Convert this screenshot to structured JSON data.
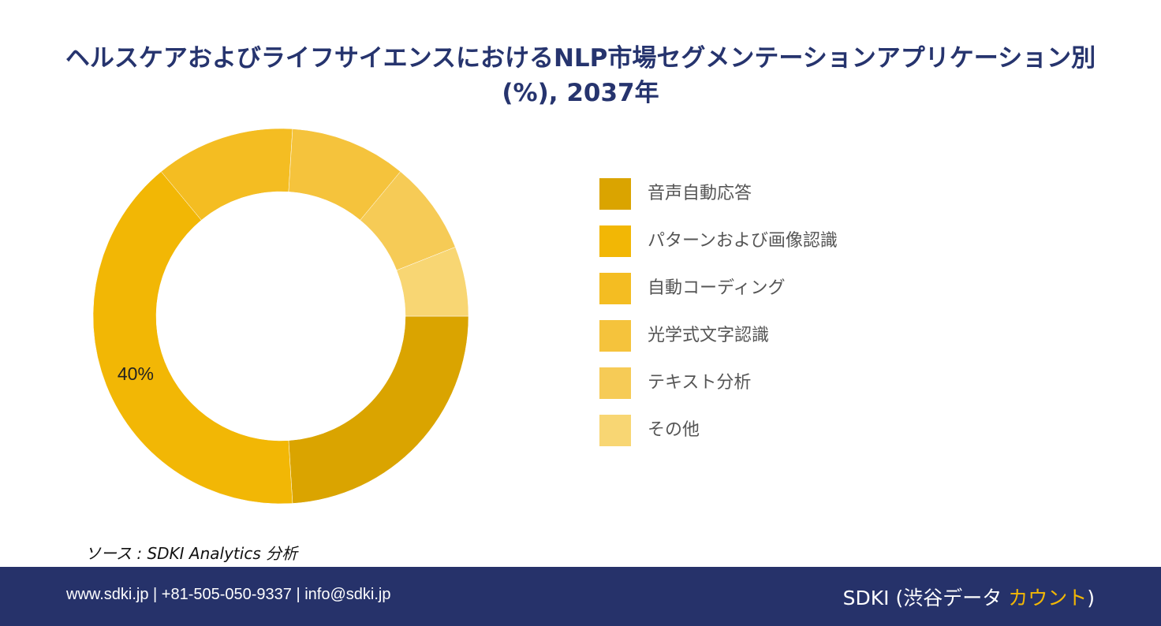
{
  "title": "ヘルスケアおよびライフサイエンスにおけるNLP市場セグメンテーションアプリケーション別(%), 2037年",
  "chart_data": {
    "type": "pie",
    "donut": true,
    "categories": [
      "音声自動応答",
      "パターンおよび画像認識",
      "自動コーディング",
      "光学式文字認識",
      "テキスト分析",
      "その他"
    ],
    "values": [
      24,
      40,
      12,
      10,
      8,
      6
    ],
    "colors": [
      "#daa400",
      "#f2b705",
      "#f4bd22",
      "#f5c33c",
      "#f6cb56",
      "#f8d673"
    ],
    "data_labels": [
      "",
      "40%",
      "",
      "",
      "",
      ""
    ],
    "legend_position": "right"
  },
  "source": "ソース : SDKI Analytics  分析",
  "footer": {
    "contact": "www.sdki.jp | +81-505-050-9337 | info@sdki.jp",
    "brand_prefix": "SDKI (渋谷データ ",
    "brand_accent": "カウント",
    "brand_suffix": ")"
  }
}
